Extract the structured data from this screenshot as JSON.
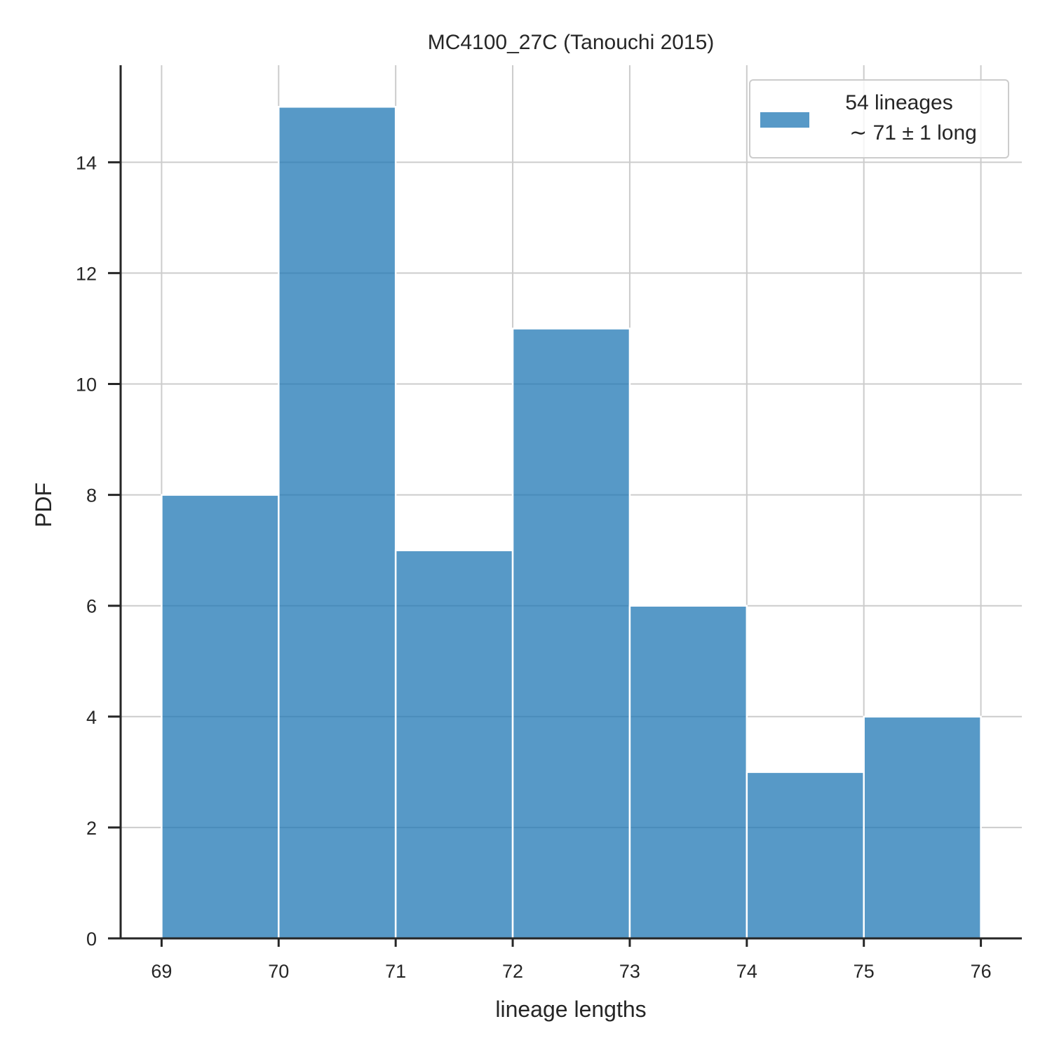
{
  "chart_data": {
    "type": "bar",
    "title": "MC4100_27C (Tanouchi 2015)",
    "xlabel": "lineage lengths",
    "ylabel": "PDF",
    "bin_edges": [
      69,
      70,
      71,
      72,
      73,
      74,
      75,
      76
    ],
    "values": [
      8,
      15,
      7,
      11,
      6,
      3,
      4
    ],
    "xlim": [
      68.65,
      76.35
    ],
    "ylim": [
      0,
      15.75
    ],
    "xticks": [
      "69",
      "70",
      "71",
      "72",
      "73",
      "74",
      "75",
      "76"
    ],
    "yticks": [
      "0",
      "2",
      "4",
      "6",
      "8",
      "10",
      "12",
      "14"
    ],
    "grid": true,
    "legend": {
      "placement": "top-right",
      "entries": [
        {
          "line1": "54 lineages",
          "line2": "∼ 71 ± 1 long"
        }
      ]
    },
    "colors": {
      "bar": "#1f77b4",
      "grid": "#cccccc",
      "axis": "#262626"
    }
  }
}
